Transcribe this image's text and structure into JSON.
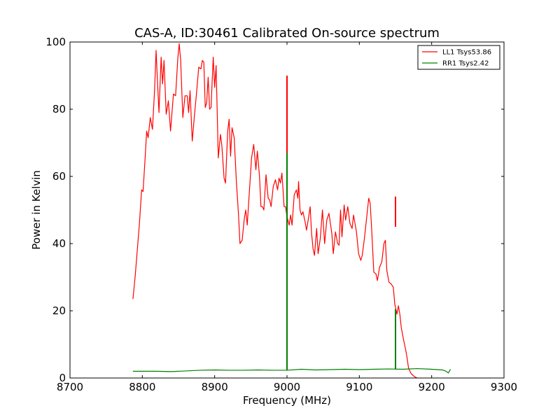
{
  "chart_data": {
    "type": "line",
    "title": "CAS-A, ID:30461 Calibrated On-source spectrum",
    "xlabel": "Frequency (MHz)",
    "ylabel": "Power in Kelvin",
    "xlim": [
      8700,
      9300
    ],
    "ylim": [
      0,
      100
    ],
    "xticks": [
      8700,
      8800,
      8900,
      9000,
      9100,
      9200,
      9300
    ],
    "yticks": [
      0,
      20,
      40,
      60,
      80,
      100
    ],
    "grid": false,
    "legend_position": "top-right",
    "series": [
      {
        "name": "LL1 Tsys53.86",
        "color": "#ff0000",
        "points": [
          [
            8787,
            23.5
          ],
          [
            8790,
            30
          ],
          [
            8793,
            38
          ],
          [
            8796,
            46
          ],
          [
            8799,
            56
          ],
          [
            8801,
            55.5
          ],
          [
            8804,
            66
          ],
          [
            8806,
            73.5
          ],
          [
            8808,
            71.5
          ],
          [
            8811,
            77.5
          ],
          [
            8814,
            74
          ],
          [
            8817,
            86
          ],
          [
            8819,
            97.5
          ],
          [
            8821,
            88
          ],
          [
            8823,
            79
          ],
          [
            8826,
            95.5
          ],
          [
            8828,
            87.5
          ],
          [
            8830,
            94.5
          ],
          [
            8833,
            78.5
          ],
          [
            8836,
            82.5
          ],
          [
            8839,
            73.5
          ],
          [
            8843,
            84.5
          ],
          [
            8846,
            84
          ],
          [
            8849,
            95
          ],
          [
            8851,
            99.5
          ],
          [
            8853,
            94.5
          ],
          [
            8856,
            77.5
          ],
          [
            8859,
            84
          ],
          [
            8862,
            84
          ],
          [
            8864,
            79
          ],
          [
            8866,
            85.5
          ],
          [
            8869,
            70.5
          ],
          [
            8872,
            78
          ],
          [
            8875,
            85
          ],
          [
            8878,
            92.5
          ],
          [
            8881,
            92
          ],
          [
            8883,
            94.5
          ],
          [
            8885,
            94
          ],
          [
            8887,
            80.5
          ],
          [
            8889,
            82
          ],
          [
            8891,
            89.5
          ],
          [
            8893,
            80
          ],
          [
            8895,
            80.5
          ],
          [
            8898,
            95.5
          ],
          [
            8900,
            86.5
          ],
          [
            8902,
            93
          ],
          [
            8905,
            65.5
          ],
          [
            8908,
            72.5
          ],
          [
            8910,
            69
          ],
          [
            8913,
            59.5
          ],
          [
            8915,
            58
          ],
          [
            8918,
            73.5
          ],
          [
            8920,
            77
          ],
          [
            8922,
            66
          ],
          [
            8924,
            74.5
          ],
          [
            8927,
            71.5
          ],
          [
            8930,
            58.5
          ],
          [
            8933,
            48.5
          ],
          [
            8935,
            40
          ],
          [
            8938,
            41
          ],
          [
            8941,
            47.5
          ],
          [
            8943,
            50
          ],
          [
            8945,
            45.5
          ],
          [
            8948,
            55.5
          ],
          [
            8951,
            65.5
          ],
          [
            8954,
            69.5
          ],
          [
            8957,
            62
          ],
          [
            8959,
            67.5
          ],
          [
            8962,
            60
          ],
          [
            8964,
            51
          ],
          [
            8966,
            51
          ],
          [
            8968,
            50
          ],
          [
            8971,
            60.5
          ],
          [
            8974,
            53.5
          ],
          [
            8976,
            53
          ],
          [
            8978,
            51
          ],
          [
            8981,
            57
          ],
          [
            8984,
            59
          ],
          [
            8987,
            56
          ],
          [
            8989,
            59.5
          ],
          [
            8991,
            58
          ],
          [
            8993,
            61
          ],
          [
            8996,
            51
          ],
          [
            8998,
            51
          ],
          [
            9000,
            48
          ],
          [
            9003,
            45.5
          ],
          [
            9005,
            48.5
          ],
          [
            9007,
            45.5
          ],
          [
            9010,
            54.5
          ],
          [
            9013,
            56
          ],
          [
            9015,
            53.5
          ],
          [
            9016,
            58.5
          ],
          [
            9018,
            50
          ],
          [
            9020,
            48.5
          ],
          [
            9022,
            49.5
          ],
          [
            9025,
            46.5
          ],
          [
            9027,
            44
          ],
          [
            9030,
            48
          ],
          [
            9032,
            51
          ],
          [
            9034,
            43
          ],
          [
            9036,
            38.5
          ],
          [
            9038,
            36.5
          ],
          [
            9041,
            44.5
          ],
          [
            9043,
            37
          ],
          [
            9046,
            41.5
          ],
          [
            9049,
            50
          ],
          [
            9052,
            40
          ],
          [
            9055,
            47
          ],
          [
            9058,
            49
          ],
          [
            9062,
            43
          ],
          [
            9064,
            37
          ],
          [
            9067,
            43.5
          ],
          [
            9070,
            40
          ],
          [
            9072,
            39.5
          ],
          [
            9074,
            50
          ],
          [
            9076,
            42
          ],
          [
            9079,
            51.5
          ],
          [
            9081,
            47
          ],
          [
            9084,
            51
          ],
          [
            9087,
            46
          ],
          [
            9090,
            44.5
          ],
          [
            9092,
            48.5
          ],
          [
            9096,
            43.5
          ],
          [
            9099,
            37
          ],
          [
            9102,
            35
          ],
          [
            9104,
            36.5
          ],
          [
            9107,
            41.5
          ],
          [
            9110,
            47.5
          ],
          [
            9113,
            53.5
          ],
          [
            9115,
            52
          ],
          [
            9117,
            44.5
          ],
          [
            9120,
            31.5
          ],
          [
            9123,
            31
          ],
          [
            9125,
            29
          ],
          [
            9128,
            33
          ],
          [
            9131,
            34.5
          ],
          [
            9134,
            40
          ],
          [
            9136,
            41
          ],
          [
            9138,
            32
          ],
          [
            9141,
            28.5
          ],
          [
            9144,
            28
          ],
          [
            9147,
            27
          ],
          [
            9149,
            22
          ],
          [
            9152,
            19
          ],
          [
            9154,
            21.5
          ],
          [
            9156,
            19
          ],
          [
            9158,
            15
          ],
          [
            9161,
            11.5
          ],
          [
            9164,
            8.5
          ],
          [
            9166,
            6
          ],
          [
            9168,
            3
          ],
          [
            9171,
            1.5
          ],
          [
            9174,
            0.8
          ],
          [
            9177,
            0.3
          ],
          [
            9180,
            0
          ]
        ],
        "spikes": [
          {
            "x": 9000,
            "peak": 90,
            "base": 57
          },
          {
            "x": 9150,
            "peak": 54,
            "base": 45
          }
        ]
      },
      {
        "name": "RR1 Tsys2.42",
        "color": "#008000",
        "points": [
          [
            8787,
            2.0
          ],
          [
            8800,
            2.0
          ],
          [
            8820,
            2.0
          ],
          [
            8840,
            1.9
          ],
          [
            8860,
            2.1
          ],
          [
            8880,
            2.3
          ],
          [
            8900,
            2.4
          ],
          [
            8920,
            2.3
          ],
          [
            8940,
            2.3
          ],
          [
            8960,
            2.4
          ],
          [
            8980,
            2.3
          ],
          [
            9000,
            2.3
          ],
          [
            9020,
            2.6
          ],
          [
            9040,
            2.4
          ],
          [
            9060,
            2.5
          ],
          [
            9080,
            2.6
          ],
          [
            9100,
            2.5
          ],
          [
            9120,
            2.6
          ],
          [
            9140,
            2.7
          ],
          [
            9160,
            2.6
          ],
          [
            9180,
            2.8
          ],
          [
            9200,
            2.6
          ],
          [
            9215,
            2.4
          ],
          [
            9220,
            2.0
          ],
          [
            9223,
            1.5
          ],
          [
            9226,
            2.6
          ]
        ],
        "spikes": [
          {
            "x": 9000,
            "peak": 67,
            "base": 2.3
          },
          {
            "x": 9150,
            "peak": 20.5,
            "base": 2.6
          }
        ]
      }
    ]
  }
}
